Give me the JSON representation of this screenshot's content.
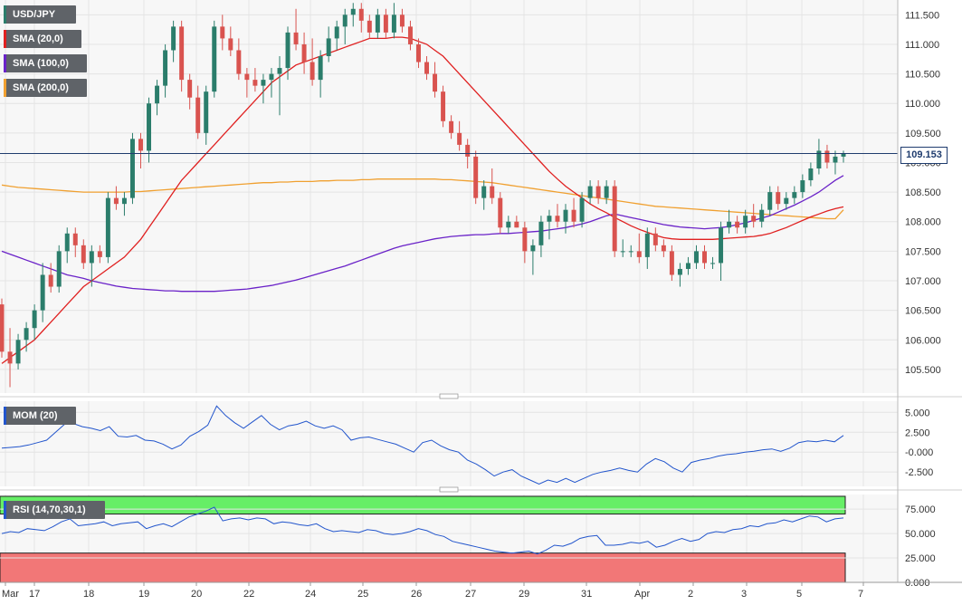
{
  "chart_data": [
    {
      "type": "candlestick",
      "panel": "price",
      "symbol": "USD/JPY",
      "legend": [
        {
          "label": "USD/JPY",
          "color": "#2b7d6b"
        },
        {
          "label": "SMA (20,0)",
          "color": "#e02020"
        },
        {
          "label": "SMA (100,0)",
          "color": "#6a22c8"
        },
        {
          "label": "SMA (200,0)",
          "color": "#f0a030"
        }
      ],
      "last_price": "109.153",
      "ylim": [
        105.1,
        111.75
      ],
      "yticks": [
        "111.500",
        "111.000",
        "110.500",
        "110.000",
        "109.500",
        "109.000",
        "108.500",
        "108.000",
        "107.500",
        "107.000",
        "106.500",
        "106.000",
        "105.500"
      ],
      "colors": {
        "up": "#2b7d6b",
        "down": "#d9534f",
        "sma20": "#e02020",
        "sma100": "#6a22c8",
        "sma200": "#f0a030",
        "last_line": "#1f3c6e"
      },
      "candles": [
        [
          106.6,
          106.7,
          105.7,
          105.8
        ],
        [
          105.8,
          106.2,
          105.2,
          105.6
        ],
        [
          105.6,
          106.1,
          105.5,
          106.0
        ],
        [
          106.0,
          106.3,
          105.8,
          106.2
        ],
        [
          106.2,
          106.6,
          106.0,
          106.5
        ],
        [
          106.5,
          107.3,
          106.3,
          107.1
        ],
        [
          107.1,
          107.3,
          106.8,
          106.9
        ],
        [
          106.9,
          107.6,
          106.8,
          107.5
        ],
        [
          107.5,
          107.9,
          107.3,
          107.8
        ],
        [
          107.8,
          107.9,
          107.4,
          107.6
        ],
        [
          107.6,
          107.7,
          107.2,
          107.3
        ],
        [
          107.3,
          107.6,
          106.9,
          107.5
        ],
        [
          107.5,
          107.6,
          107.3,
          107.4
        ],
        [
          107.4,
          108.5,
          107.3,
          108.4
        ],
        [
          108.4,
          108.6,
          108.2,
          108.3
        ],
        [
          108.3,
          108.5,
          108.1,
          108.4
        ],
        [
          108.4,
          109.5,
          108.3,
          109.4
        ],
        [
          109.4,
          109.5,
          108.9,
          109.2
        ],
        [
          109.2,
          110.1,
          109.0,
          110.0
        ],
        [
          110.0,
          110.4,
          109.8,
          110.3
        ],
        [
          110.3,
          111.0,
          110.1,
          110.9
        ],
        [
          110.9,
          111.4,
          110.7,
          111.3
        ],
        [
          111.3,
          111.4,
          110.2,
          110.4
        ],
        [
          110.4,
          110.5,
          109.9,
          110.1
        ],
        [
          110.1,
          110.3,
          109.4,
          109.5
        ],
        [
          109.5,
          110.3,
          109.3,
          110.2
        ],
        [
          110.2,
          111.4,
          110.1,
          111.3
        ],
        [
          111.3,
          111.5,
          110.9,
          111.1
        ],
        [
          111.1,
          111.3,
          110.8,
          110.9
        ],
        [
          110.9,
          111.1,
          110.4,
          110.5
        ],
        [
          110.5,
          110.6,
          110.1,
          110.4
        ],
        [
          110.4,
          110.6,
          110.2,
          110.3
        ],
        [
          110.3,
          110.5,
          110.0,
          110.4
        ],
        [
          110.4,
          110.6,
          110.1,
          110.5
        ],
        [
          110.5,
          110.8,
          109.8,
          110.6
        ],
        [
          110.6,
          111.3,
          110.4,
          111.2
        ],
        [
          111.2,
          111.6,
          110.9,
          111.0
        ],
        [
          111.0,
          111.2,
          110.5,
          110.7
        ],
        [
          110.7,
          111.1,
          110.3,
          110.4
        ],
        [
          110.4,
          110.9,
          110.1,
          110.8
        ],
        [
          110.8,
          111.3,
          110.7,
          111.1
        ],
        [
          111.1,
          111.4,
          110.9,
          111.3
        ],
        [
          111.3,
          111.6,
          111.0,
          111.5
        ],
        [
          111.5,
          111.7,
          111.3,
          111.6
        ],
        [
          111.6,
          111.7,
          111.2,
          111.4
        ],
        [
          111.4,
          111.5,
          111.1,
          111.2
        ],
        [
          111.2,
          111.6,
          111.1,
          111.5
        ],
        [
          111.5,
          111.6,
          111.1,
          111.2
        ],
        [
          111.2,
          111.7,
          111.1,
          111.5
        ],
        [
          111.5,
          111.6,
          111.2,
          111.3
        ],
        [
          111.3,
          111.4,
          110.9,
          111.0
        ],
        [
          111.0,
          111.1,
          110.6,
          110.7
        ],
        [
          110.7,
          110.8,
          110.4,
          110.5
        ],
        [
          110.5,
          110.7,
          110.1,
          110.2
        ],
        [
          110.2,
          110.3,
          109.6,
          109.7
        ],
        [
          109.7,
          109.8,
          109.4,
          109.5
        ],
        [
          109.5,
          109.7,
          109.2,
          109.3
        ],
        [
          109.3,
          109.4,
          108.9,
          109.1
        ],
        [
          109.1,
          109.2,
          108.3,
          108.4
        ],
        [
          108.4,
          108.7,
          108.2,
          108.6
        ],
        [
          108.6,
          108.9,
          108.3,
          108.4
        ],
        [
          108.4,
          108.5,
          107.8,
          107.9
        ],
        [
          107.9,
          108.1,
          107.8,
          108.0
        ],
        [
          108.0,
          108.1,
          107.9,
          107.9
        ],
        [
          107.9,
          108.0,
          107.3,
          107.5
        ],
        [
          107.5,
          107.7,
          107.1,
          107.6
        ],
        [
          107.6,
          108.1,
          107.4,
          108.0
        ],
        [
          108.0,
          108.2,
          107.7,
          108.1
        ],
        [
          108.1,
          108.3,
          107.9,
          108.0
        ],
        [
          108.0,
          108.3,
          107.8,
          108.2
        ],
        [
          108.2,
          108.4,
          107.9,
          108.0
        ],
        [
          108.0,
          108.5,
          107.9,
          108.4
        ],
        [
          108.4,
          108.7,
          108.3,
          108.6
        ],
        [
          108.6,
          108.7,
          108.3,
          108.4
        ],
        [
          108.4,
          108.7,
          108.3,
          108.6
        ],
        [
          108.6,
          108.7,
          107.4,
          107.5
        ],
        [
          107.5,
          107.7,
          107.4,
          107.5
        ],
        [
          107.5,
          107.6,
          107.4,
          107.5
        ],
        [
          107.5,
          107.8,
          107.3,
          107.4
        ],
        [
          107.4,
          107.9,
          107.2,
          107.8
        ],
        [
          107.8,
          107.9,
          107.5,
          107.6
        ],
        [
          107.6,
          107.7,
          107.4,
          107.5
        ],
        [
          107.5,
          107.6,
          107.0,
          107.1
        ],
        [
          107.1,
          107.3,
          106.9,
          107.2
        ],
        [
          107.2,
          107.4,
          107.1,
          107.3
        ],
        [
          107.3,
          107.6,
          107.2,
          107.5
        ],
        [
          107.5,
          107.6,
          107.2,
          107.3
        ],
        [
          107.3,
          107.4,
          107.2,
          107.3
        ],
        [
          107.3,
          108.0,
          107.0,
          107.9
        ],
        [
          107.9,
          108.2,
          107.8,
          108.0
        ],
        [
          108.0,
          108.1,
          107.8,
          107.9
        ],
        [
          107.9,
          108.2,
          107.8,
          108.1
        ],
        [
          108.1,
          108.3,
          107.9,
          108.0
        ],
        [
          108.0,
          108.3,
          107.9,
          108.2
        ],
        [
          108.2,
          108.6,
          108.1,
          108.5
        ],
        [
          108.5,
          108.6,
          108.2,
          108.3
        ],
        [
          108.3,
          108.5,
          108.2,
          108.4
        ],
        [
          108.4,
          108.6,
          108.3,
          108.5
        ],
        [
          108.5,
          108.8,
          108.4,
          108.7
        ],
        [
          108.7,
          109.0,
          108.6,
          108.9
        ],
        [
          108.9,
          109.4,
          108.8,
          109.2
        ],
        [
          109.2,
          109.3,
          108.9,
          109.0
        ],
        [
          109.0,
          109.2,
          108.8,
          109.1
        ],
        [
          109.1,
          109.2,
          109.0,
          109.15
        ]
      ],
      "sma20": [
        105.6,
        105.7,
        105.8,
        105.9,
        106.0,
        106.15,
        106.3,
        106.45,
        106.6,
        106.75,
        106.9,
        107.0,
        107.1,
        107.2,
        107.3,
        107.4,
        107.55,
        107.7,
        107.9,
        108.1,
        108.3,
        108.5,
        108.7,
        108.85,
        109.0,
        109.15,
        109.3,
        109.45,
        109.6,
        109.75,
        109.9,
        110.05,
        110.2,
        110.35,
        110.45,
        110.55,
        110.65,
        110.7,
        110.75,
        110.8,
        110.85,
        110.9,
        110.95,
        111.0,
        111.05,
        111.1,
        111.1,
        111.1,
        111.12,
        111.12,
        111.1,
        111.05,
        111.0,
        110.9,
        110.8,
        110.65,
        110.5,
        110.35,
        110.2,
        110.05,
        109.9,
        109.75,
        109.6,
        109.45,
        109.3,
        109.15,
        109.0,
        108.85,
        108.72,
        108.6,
        108.5,
        108.4,
        108.3,
        108.22,
        108.15,
        108.07,
        108.0,
        107.93,
        107.87,
        107.82,
        107.77,
        107.73,
        107.71,
        107.7,
        107.7,
        107.7,
        107.7,
        107.7,
        107.71,
        107.72,
        107.73,
        107.74,
        107.75,
        107.77,
        107.8,
        107.85,
        107.9,
        107.96,
        108.02,
        108.08,
        108.13,
        108.18,
        108.22,
        108.25
      ],
      "sma100": [
        107.5,
        107.45,
        107.4,
        107.35,
        107.3,
        107.25,
        107.2,
        107.15,
        107.1,
        107.07,
        107.04,
        107.0,
        106.97,
        106.94,
        106.91,
        106.89,
        106.87,
        106.86,
        106.85,
        106.84,
        106.83,
        106.83,
        106.82,
        106.82,
        106.82,
        106.82,
        106.82,
        106.83,
        106.84,
        106.85,
        106.86,
        106.88,
        106.9,
        106.92,
        106.95,
        106.98,
        107.01,
        107.05,
        107.09,
        107.13,
        107.17,
        107.21,
        107.25,
        107.3,
        107.35,
        107.4,
        107.45,
        107.5,
        107.55,
        107.59,
        107.62,
        107.65,
        107.68,
        107.71,
        107.73,
        107.75,
        107.76,
        107.77,
        107.78,
        107.78,
        107.79,
        107.8,
        107.8,
        107.81,
        107.82,
        107.83,
        107.84,
        107.86,
        107.88,
        107.9,
        107.93,
        107.96,
        108.0,
        108.05,
        108.1,
        108.13,
        108.1,
        108.07,
        108.04,
        108.01,
        107.98,
        107.95,
        107.93,
        107.91,
        107.9,
        107.89,
        107.88,
        107.89,
        107.9,
        107.92,
        107.95,
        107.98,
        108.02,
        108.06,
        108.1,
        108.16,
        108.22,
        108.28,
        108.35,
        108.42,
        108.5,
        108.6,
        108.7,
        108.78
      ],
      "sma200": [
        108.62,
        108.6,
        108.58,
        108.57,
        108.56,
        108.55,
        108.54,
        108.53,
        108.52,
        108.51,
        108.5,
        108.5,
        108.5,
        108.5,
        108.5,
        108.5,
        108.51,
        108.51,
        108.52,
        108.53,
        108.54,
        108.55,
        108.56,
        108.57,
        108.58,
        108.59,
        108.6,
        108.61,
        108.62,
        108.63,
        108.64,
        108.65,
        108.66,
        108.66,
        108.67,
        108.67,
        108.68,
        108.68,
        108.68,
        108.69,
        108.69,
        108.7,
        108.7,
        108.7,
        108.71,
        108.71,
        108.72,
        108.72,
        108.72,
        108.72,
        108.72,
        108.72,
        108.72,
        108.72,
        108.71,
        108.71,
        108.7,
        108.69,
        108.68,
        108.67,
        108.66,
        108.64,
        108.62,
        108.6,
        108.58,
        108.56,
        108.54,
        108.52,
        108.5,
        108.48,
        108.46,
        108.44,
        108.42,
        108.4,
        108.38,
        108.36,
        108.34,
        108.32,
        108.3,
        108.28,
        108.26,
        108.25,
        108.24,
        108.23,
        108.22,
        108.21,
        108.2,
        108.19,
        108.18,
        108.17,
        108.16,
        108.15,
        108.14,
        108.13,
        108.12,
        108.11,
        108.1,
        108.09,
        108.08,
        108.07,
        108.06,
        108.05,
        108.05,
        108.2
      ]
    },
    {
      "type": "line",
      "panel": "momentum",
      "legend": "MOM (20)",
      "color": "#2255cc",
      "ylim": [
        -4.3,
        6.4
      ],
      "yticks": [
        "5.000",
        "2.500",
        "-0.000",
        "-2.500"
      ],
      "values": [
        0.5,
        0.6,
        0.7,
        0.9,
        1.2,
        1.5,
        2.5,
        3.5,
        3.6,
        3.2,
        3.0,
        2.7,
        3.2,
        2.0,
        1.9,
        2.1,
        1.5,
        1.4,
        1.0,
        0.4,
        0.9,
        2.0,
        2.6,
        3.4,
        5.8,
        4.6,
        3.7,
        3.0,
        3.8,
        4.6,
        3.5,
        2.8,
        3.3,
        3.5,
        3.9,
        3.3,
        3.0,
        3.3,
        2.8,
        1.5,
        1.8,
        1.9,
        1.6,
        1.3,
        1.0,
        0.5,
        0.0,
        1.2,
        1.5,
        0.8,
        0.3,
        0.0,
        -1.0,
        -1.5,
        -2.2,
        -3.0,
        -2.5,
        -2.2,
        -3.0,
        -3.5,
        -4.0,
        -3.5,
        -3.8,
        -3.3,
        -3.8,
        -3.3,
        -2.8,
        -2.5,
        -2.3,
        -2.0,
        -2.3,
        -2.5,
        -1.5,
        -0.8,
        -1.2,
        -2.0,
        -2.5,
        -1.3,
        -1.0,
        -0.8,
        -0.5,
        -0.3,
        -0.2,
        0.0,
        0.1,
        0.3,
        0.4,
        0.1,
        0.5,
        1.2,
        1.4,
        1.3,
        1.5,
        1.3,
        2.1
      ],
      "x_index_max": 94
    },
    {
      "type": "line",
      "panel": "rsi",
      "legend": "RSI (14,70,30,1)",
      "color": "#2255cc",
      "ylim": [
        0,
        90
      ],
      "yticks": [
        "75.000",
        "50.000",
        "25.000",
        "0.000"
      ],
      "bands": {
        "overbought": 70,
        "oversold": 30,
        "ob_color": "#66ee66",
        "os_color": "#f27777"
      },
      "values": [
        50,
        52,
        51,
        55,
        54,
        53,
        57,
        62,
        65,
        58,
        59,
        60,
        62,
        58,
        60,
        61,
        62,
        55,
        58,
        60,
        57,
        62,
        67,
        70,
        73,
        77,
        63,
        65,
        66,
        64,
        66,
        65,
        60,
        62,
        61,
        59,
        58,
        60,
        55,
        52,
        53,
        52,
        51,
        54,
        53,
        50,
        49,
        50,
        52,
        55,
        53,
        49,
        47,
        42,
        40,
        38,
        36,
        34,
        32,
        31,
        30,
        31,
        32,
        29,
        33,
        38,
        37,
        40,
        45,
        47,
        48,
        38,
        38,
        39,
        41,
        40,
        42,
        36,
        38,
        42,
        45,
        42,
        44,
        50,
        52,
        51,
        54,
        55,
        58,
        57,
        60,
        61,
        64,
        62,
        65,
        68,
        67,
        62,
        65,
        66
      ],
      "x_index_max": 108
    }
  ],
  "x_axis": {
    "labels": [
      "Mar",
      "17",
      "18",
      "19",
      "20",
      "22",
      "24",
      "25",
      "26",
      "27",
      "29",
      "31",
      "Apr",
      "2",
      "3",
      "5",
      "7"
    ]
  }
}
